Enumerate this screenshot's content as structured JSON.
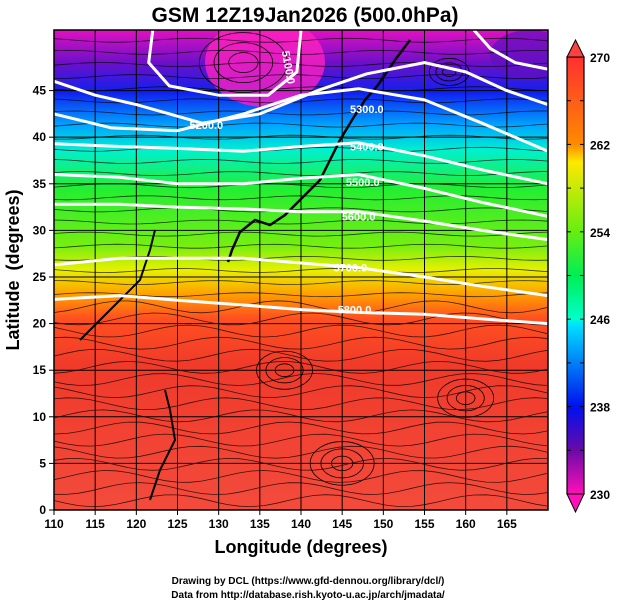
{
  "title": "GSM 12Z19Jan2026 (500.0hPa)",
  "chart_data": {
    "type": "map",
    "title": "GSM 12Z19Jan2026 (500.0hPa)",
    "xlabel": "Longitude (degrees)",
    "ylabel": "Latitude  (degrees)",
    "xlim": [
      110,
      170
    ],
    "ylim": [
      0,
      51.5
    ],
    "xticks": [
      "110",
      "115",
      "120",
      "125",
      "130",
      "135",
      "140",
      "145",
      "150",
      "155",
      "160",
      "165"
    ],
    "yticks": [
      "0",
      "5",
      "10",
      "15",
      "20",
      "25",
      "30",
      "35",
      "40",
      "45"
    ],
    "grid": true,
    "colorbar": {
      "min": 230,
      "max": 270,
      "tick_labels": [
        "270",
        "262",
        "254",
        "246",
        "238",
        "230"
      ],
      "colors": [
        "#ff3030",
        "#ff8800",
        "#ffe000",
        "#ccff00",
        "#22ee22",
        "#00ffcc",
        "#00e0ff",
        "#0077ff",
        "#0000ee",
        "#7a0aa8",
        "#ff10b8"
      ]
    },
    "contours": [
      {
        "label": "5100.0",
        "points": [
          [
            122,
            51.5
          ],
          [
            121.5,
            48
          ],
          [
            124,
            45.5
          ],
          [
            130,
            44.5
          ],
          [
            136,
            44.5
          ],
          [
            139.5,
            47
          ],
          [
            140,
            51.5
          ]
        ],
        "label_at": [
          138.5,
          47.5
        ]
      },
      {
        "label": "5200.0",
        "points": [
          [
            110,
            46
          ],
          [
            115,
            44.5
          ],
          [
            120,
            43.5
          ],
          [
            128,
            41.5
          ],
          [
            135,
            42.5
          ],
          [
            142,
            45
          ],
          [
            148,
            46.8
          ],
          [
            155,
            48
          ],
          [
            160,
            47
          ],
          [
            165,
            45
          ],
          [
            170,
            43.5
          ]
        ],
        "label_at": [
          128.5,
          41.3
        ]
      },
      {
        "label": "5300.0",
        "points": [
          [
            110,
            42.5
          ],
          [
            117,
            41
          ],
          [
            125,
            40.7
          ],
          [
            133,
            42.5
          ],
          [
            140,
            44.5
          ],
          [
            147,
            45.2
          ],
          [
            155,
            44
          ],
          [
            162,
            41.5
          ],
          [
            170,
            38.5
          ]
        ],
        "label_at": [
          148,
          43
        ]
      },
      {
        "label": "5400.0",
        "points": [
          [
            110,
            39.3
          ],
          [
            118,
            39
          ],
          [
            125,
            38.8
          ],
          [
            133,
            38.5
          ],
          [
            140,
            39
          ],
          [
            147,
            39.4
          ],
          [
            155,
            38
          ],
          [
            162,
            36.5
          ],
          [
            170,
            35
          ]
        ],
        "label_at": [
          148,
          39
        ]
      },
      {
        "label": "5500.0",
        "points": [
          [
            110,
            36
          ],
          [
            118,
            35.7
          ],
          [
            125,
            35
          ],
          [
            133,
            35
          ],
          [
            140,
            35.6
          ],
          [
            147,
            36
          ],
          [
            155,
            34.5
          ],
          [
            162,
            33
          ],
          [
            170,
            31.5
          ]
        ],
        "label_at": [
          147.5,
          35.2
        ]
      },
      {
        "label": "5600.0",
        "points": [
          [
            110,
            32.8
          ],
          [
            118,
            32.8
          ],
          [
            125,
            32.5
          ],
          [
            133,
            32.3
          ],
          [
            140,
            32
          ],
          [
            147,
            32
          ],
          [
            155,
            31
          ],
          [
            162,
            30
          ],
          [
            170,
            29
          ]
        ],
        "label_at": [
          147,
          31.5
        ]
      },
      {
        "label": "5700.0",
        "points": [
          [
            110,
            26.3
          ],
          [
            118,
            27
          ],
          [
            125,
            27
          ],
          [
            133,
            27
          ],
          [
            140,
            26.5
          ],
          [
            147,
            26
          ],
          [
            155,
            25
          ],
          [
            162,
            24
          ],
          [
            170,
            23
          ]
        ],
        "label_at": [
          146,
          26
        ]
      },
      {
        "label": "5800.0",
        "points": [
          [
            110,
            22.6
          ],
          [
            118,
            23
          ],
          [
            125,
            22.5
          ],
          [
            133,
            22
          ],
          [
            140,
            21.5
          ],
          [
            147,
            21.2
          ],
          [
            155,
            21
          ],
          [
            162,
            20.5
          ],
          [
            170,
            20
          ]
        ],
        "label_at": [
          146.5,
          21.5
        ]
      },
      {
        "label": "",
        "points": [
          [
            161,
            51.5
          ],
          [
            163,
            49.5
          ],
          [
            166,
            48
          ],
          [
            170,
            47.3
          ]
        ],
        "label_at": null
      }
    ]
  },
  "credits": {
    "line1": "Drawing by DCL (https://www.gfd-dennou.org/library/dcl/)",
    "line2": "Data from http://database.rish.kyoto-u.ac.jp/arch/jmadata/"
  }
}
